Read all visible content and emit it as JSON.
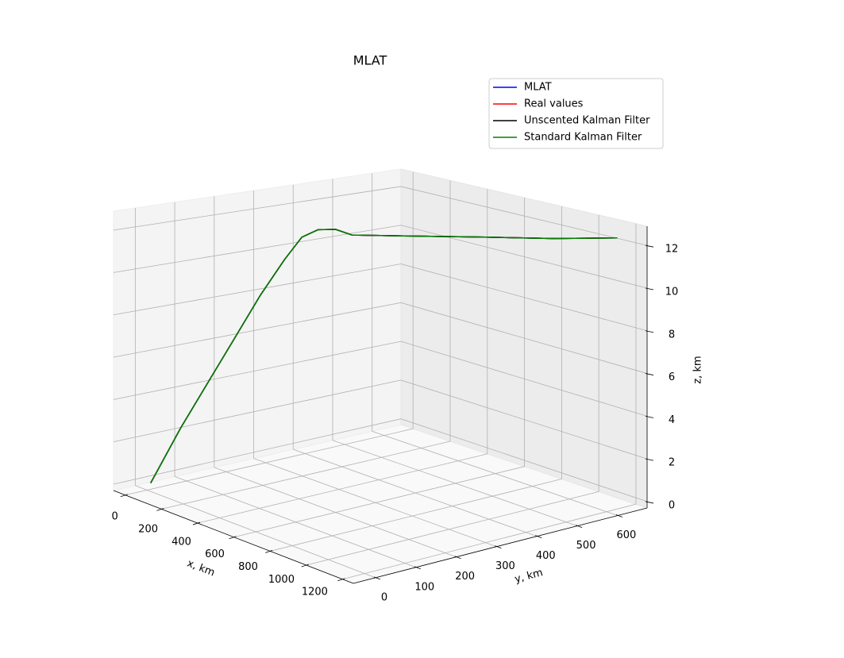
{
  "chart_data": {
    "type": "line3d",
    "title": "MLAT",
    "xlabel": "x, km",
    "ylabel": "y, km",
    "zlabel": "z, km",
    "xlim": [
      -65,
      1260
    ],
    "ylim": [
      -55,
      673
    ],
    "zlim": [
      -0.3,
      12.9
    ],
    "xticks": [
      0,
      200,
      400,
      600,
      800,
      1000,
      1200
    ],
    "yticks": [
      0,
      100,
      200,
      300,
      400,
      500,
      600
    ],
    "zticks": [
      0,
      2,
      4,
      6,
      8,
      10,
      12
    ],
    "grid": true,
    "legend": "upper right",
    "series": [
      {
        "name": "MLAT",
        "color": "#0000ff",
        "x": [
          20,
          120,
          200,
          280,
          360,
          430,
          480,
          525,
          545,
          558,
          700,
          850,
          1000,
          1121
        ],
        "y": [
          0,
          30,
          60,
          90,
          120,
          150,
          170,
          190,
          225,
          260,
          360,
          460,
          560,
          663
        ],
        "z": [
          0.1,
          2.9,
          5.1,
          7.3,
          9.5,
          11.3,
          12.4,
          12.8,
          12.75,
          12.4,
          12.35,
          12.3,
          12.2,
          12.1
        ]
      },
      {
        "name": "Real values",
        "color": "#ff0000",
        "x": [
          20,
          120,
          200,
          280,
          360,
          430,
          480,
          525,
          545,
          558,
          700,
          850,
          1000,
          1121
        ],
        "y": [
          0,
          30,
          60,
          90,
          120,
          150,
          170,
          190,
          225,
          260,
          360,
          460,
          560,
          663
        ],
        "z": [
          0.1,
          2.9,
          5.1,
          7.3,
          9.5,
          11.3,
          12.4,
          12.8,
          12.75,
          12.4,
          12.35,
          12.3,
          12.2,
          12.1
        ]
      },
      {
        "name": "Unscented Kalman Filter",
        "color": "#000000",
        "x": [
          20,
          120,
          200,
          280,
          360,
          430,
          480,
          525,
          545,
          558,
          700,
          850,
          1000,
          1121
        ],
        "y": [
          0,
          30,
          60,
          90,
          120,
          150,
          170,
          190,
          225,
          260,
          360,
          460,
          560,
          663
        ],
        "z": [
          0.1,
          2.9,
          5.1,
          7.3,
          9.5,
          11.3,
          12.4,
          12.8,
          12.75,
          12.4,
          12.35,
          12.3,
          12.2,
          12.1
        ]
      },
      {
        "name": "Standard Kalman Filter",
        "color": "#008000",
        "x": [
          20,
          120,
          200,
          280,
          360,
          430,
          480,
          525,
          545,
          558,
          700,
          850,
          1000,
          1121
        ],
        "y": [
          0,
          30,
          60,
          90,
          120,
          150,
          170,
          190,
          225,
          260,
          360,
          460,
          560,
          663
        ],
        "z": [
          0.1,
          2.9,
          5.1,
          7.3,
          9.5,
          11.3,
          12.4,
          12.8,
          12.75,
          12.4,
          12.35,
          12.3,
          12.2,
          12.1
        ]
      }
    ]
  }
}
